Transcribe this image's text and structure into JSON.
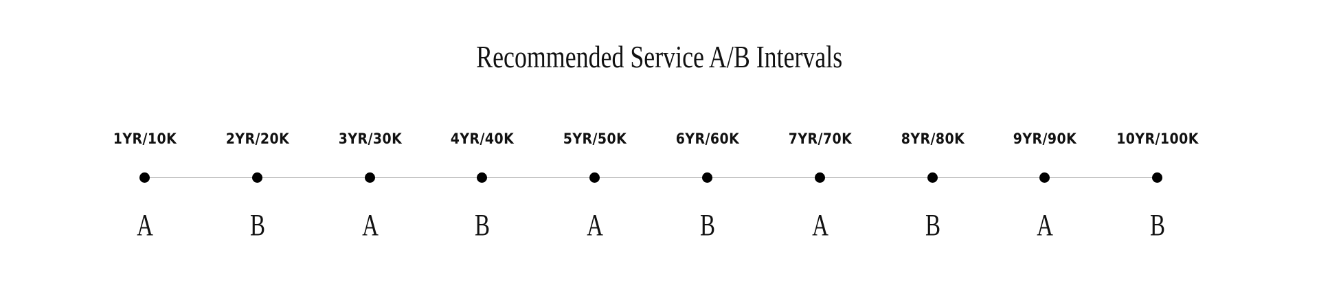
{
  "title": "Recommended Service A/B Intervals",
  "intervals": [
    {
      "label": "1YR/10K",
      "service": "A"
    },
    {
      "label": "2YR/20K",
      "service": "B"
    },
    {
      "label": "3YR/30K",
      "service": "A"
    },
    {
      "label": "4YR/40K",
      "service": "B"
    },
    {
      "label": "5YR/50K",
      "service": "A"
    },
    {
      "label": "6YR/60K",
      "service": "B"
    },
    {
      "label": "7YR/70K",
      "service": "A"
    },
    {
      "label": "8YR/80K",
      "service": "B"
    },
    {
      "label": "9YR/90K",
      "service": "A"
    },
    {
      "label": "10YR/100K",
      "service": "B"
    }
  ]
}
